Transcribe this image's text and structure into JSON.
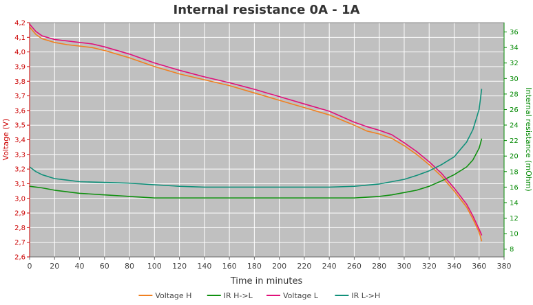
{
  "chart_data": {
    "type": "line",
    "title": "Internal resistance  0A - 1A",
    "xlabel": "Time in minutes",
    "ylabel_left": "Voltage (V)",
    "ylabel_right": "Internal resistance (mOhm)",
    "xlim": [
      0,
      380
    ],
    "ylim_left": [
      2.6,
      4.2
    ],
    "ylim_right": [
      7,
      37.2
    ],
    "x_ticks": [
      0,
      20,
      40,
      60,
      80,
      100,
      120,
      140,
      160,
      180,
      200,
      220,
      240,
      260,
      280,
      300,
      320,
      340,
      360,
      380
    ],
    "y_left_ticks": [
      "2,6",
      "2,7",
      "2,8",
      "2,9",
      "3,0",
      "3,1",
      "3,2",
      "3,3",
      "3,4",
      "3,5",
      "3,6",
      "3,7",
      "3,8",
      "3,9",
      "4,0",
      "4,1",
      "4,2"
    ],
    "y_right_ticks": [
      "8",
      "10",
      "12",
      "14",
      "16",
      "18",
      "20",
      "22",
      "24",
      "26",
      "28",
      "30",
      "32",
      "34",
      "36"
    ],
    "grid": true,
    "legend_position": "bottom",
    "plot_background": "#c0c0c0",
    "series": [
      {
        "name": "Voltage H",
        "axis": "left",
        "color": "#f08020",
        "x": [
          0,
          5,
          10,
          20,
          30,
          40,
          50,
          60,
          80,
          100,
          120,
          140,
          160,
          180,
          200,
          220,
          240,
          260,
          270,
          280,
          290,
          300,
          310,
          320,
          330,
          340,
          350,
          355,
          360,
          362
        ],
        "y": [
          4.17,
          4.12,
          4.09,
          4.065,
          4.05,
          4.04,
          4.03,
          4.01,
          3.96,
          3.9,
          3.85,
          3.81,
          3.77,
          3.72,
          3.67,
          3.62,
          3.57,
          3.5,
          3.46,
          3.44,
          3.41,
          3.36,
          3.3,
          3.23,
          3.15,
          3.05,
          2.94,
          2.86,
          2.77,
          2.71
        ]
      },
      {
        "name": "IR H->L",
        "axis": "right",
        "color": "#109010",
        "x": [
          0,
          10,
          20,
          30,
          40,
          60,
          80,
          100,
          120,
          140,
          160,
          180,
          200,
          220,
          240,
          260,
          280,
          290,
          300,
          310,
          320,
          330,
          340,
          350,
          355,
          360,
          362
        ],
        "y": [
          16.1,
          15.9,
          15.6,
          15.4,
          15.2,
          15.0,
          14.8,
          14.6,
          14.6,
          14.6,
          14.6,
          14.6,
          14.6,
          14.6,
          14.6,
          14.6,
          14.8,
          15.0,
          15.3,
          15.6,
          16.1,
          16.8,
          17.6,
          18.6,
          19.5,
          21.0,
          22.2
        ]
      },
      {
        "name": "Voltage L",
        "axis": "left",
        "color": "#e0107a",
        "x": [
          0,
          5,
          10,
          20,
          30,
          40,
          50,
          60,
          80,
          100,
          120,
          140,
          160,
          180,
          200,
          220,
          240,
          260,
          270,
          280,
          290,
          300,
          310,
          320,
          330,
          340,
          350,
          355,
          360,
          362
        ],
        "y": [
          4.19,
          4.14,
          4.11,
          4.085,
          4.075,
          4.065,
          4.055,
          4.035,
          3.985,
          3.925,
          3.875,
          3.83,
          3.79,
          3.745,
          3.695,
          3.645,
          3.595,
          3.52,
          3.49,
          3.465,
          3.435,
          3.38,
          3.32,
          3.25,
          3.17,
          3.07,
          2.96,
          2.88,
          2.79,
          2.75
        ]
      },
      {
        "name": "IR L->H",
        "axis": "right",
        "color": "#10907a",
        "x": [
          0,
          5,
          10,
          20,
          30,
          40,
          60,
          80,
          100,
          120,
          140,
          160,
          180,
          200,
          220,
          240,
          260,
          280,
          290,
          300,
          310,
          320,
          330,
          340,
          350,
          355,
          360,
          362
        ],
        "y": [
          18.6,
          18.0,
          17.6,
          17.1,
          16.9,
          16.7,
          16.6,
          16.5,
          16.3,
          16.1,
          16.0,
          16.0,
          16.0,
          16.0,
          16.0,
          16.0,
          16.1,
          16.4,
          16.7,
          17.0,
          17.5,
          18.1,
          18.9,
          19.9,
          21.8,
          23.4,
          26.0,
          28.6
        ]
      }
    ]
  }
}
